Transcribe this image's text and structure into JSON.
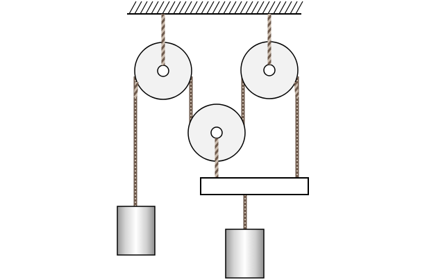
{
  "colors": {
    "background": "#ffffff",
    "outline": "#000000",
    "pulley_face": "#f2f2f2",
    "rope_dark": "#6e5a4c",
    "rope_light": "#cbbcae",
    "block_mid": "#dcdcdc",
    "block_light": "#ffffff",
    "block_dark": "#9c9c9c",
    "plank_fill": "#ffffff"
  },
  "icons": {
    "ceiling": "hatched-ceiling-icon",
    "pulley": "pulley-wheel-icon",
    "weight": "cylinder-weight-icon",
    "plank": "rectangular-plank-icon"
  }
}
